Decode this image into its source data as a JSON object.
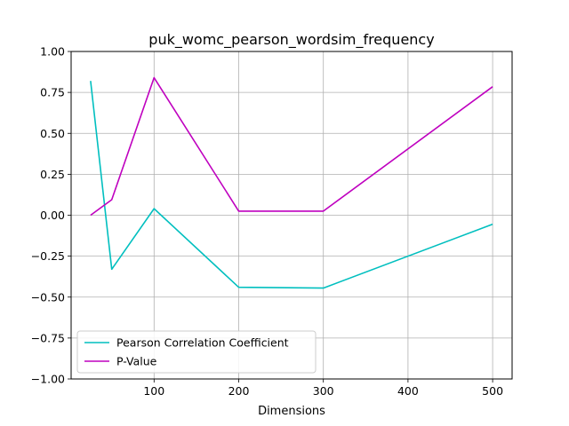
{
  "chart_data": {
    "type": "line",
    "title": "puk_womc_pearson_wordsim_frequency",
    "xlabel": "Dimensions",
    "ylabel": "",
    "x": [
      25,
      50,
      100,
      200,
      300,
      500
    ],
    "xlim": [
      2,
      523
    ],
    "ylim": [
      -1.0,
      1.0
    ],
    "xticks": [
      100,
      200,
      300,
      400,
      500
    ],
    "yticks": [
      -1.0,
      -0.75,
      -0.5,
      -0.25,
      0.0,
      0.25,
      0.5,
      0.75,
      1.0
    ],
    "xtick_labels": [
      "100",
      "200",
      "300",
      "400",
      "500"
    ],
    "ytick_labels": [
      "−1.00",
      "−0.75",
      "−0.50",
      "−0.25",
      "0.00",
      "0.25",
      "0.50",
      "0.75",
      "1.00"
    ],
    "grid": true,
    "legend_position": "lower-left",
    "series": [
      {
        "name": "Pearson Correlation Coefficient",
        "color": "#00bfbf",
        "values": [
          0.82,
          -0.33,
          0.04,
          -0.44,
          -0.445,
          -0.055
        ]
      },
      {
        "name": "P-Value",
        "color": "#bf00bf",
        "values": [
          0.0,
          0.095,
          0.84,
          0.025,
          0.025,
          0.785
        ]
      }
    ]
  }
}
